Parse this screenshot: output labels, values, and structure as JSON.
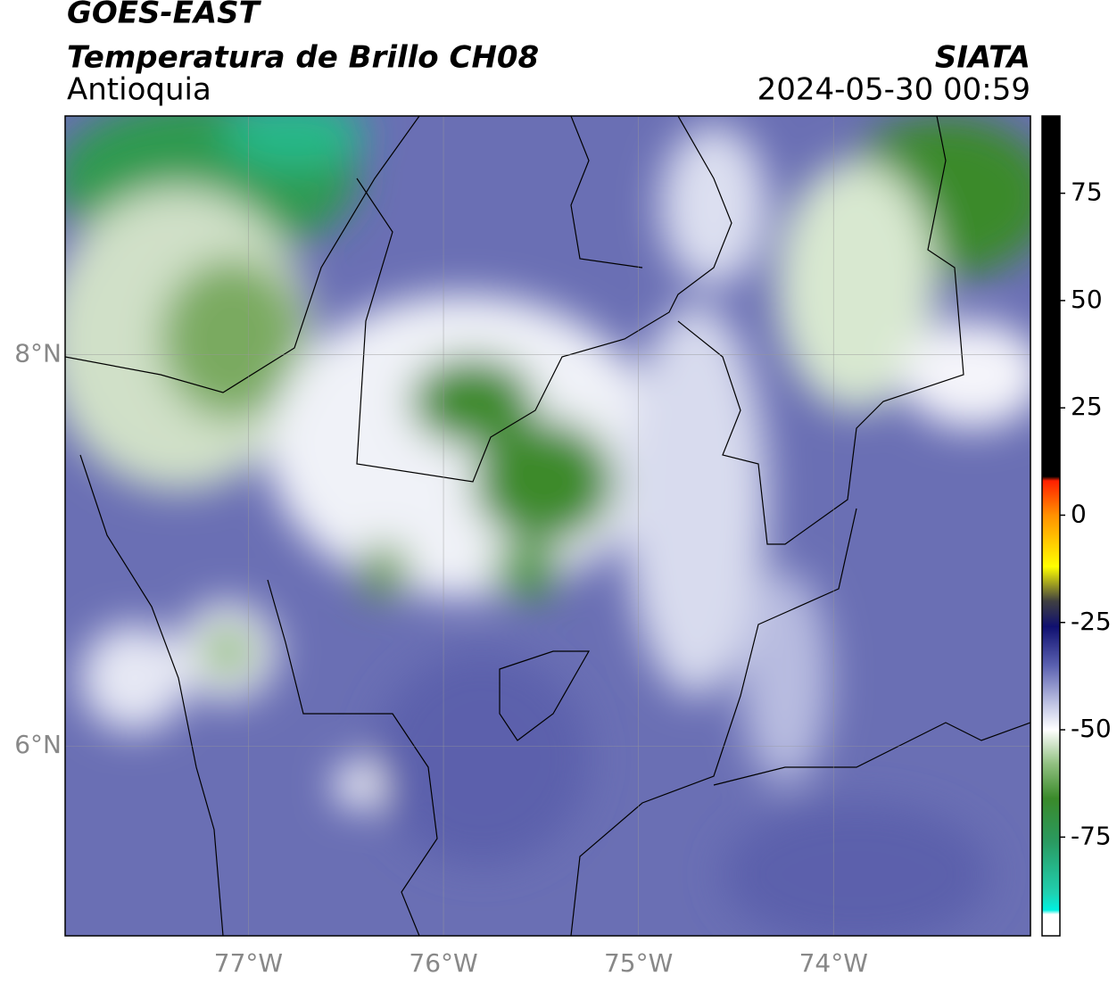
{
  "header": {
    "title": "GOES-EAST",
    "subtitle": "Temperatura de Brillo CH08",
    "region": "Antioquia",
    "source": "SIATA",
    "datetime": "2024-05-30 00:59"
  },
  "map": {
    "lonlim": [
      -77.94,
      -72.99
    ],
    "latlim": [
      5.03,
      9.22
    ],
    "lonticks": [
      {
        "value": -77,
        "label": "77°W"
      },
      {
        "value": -76,
        "label": "76°W"
      },
      {
        "value": -75,
        "label": "75°W"
      },
      {
        "value": -74,
        "label": "74°W"
      }
    ],
    "latticks": [
      {
        "value": 8,
        "label": "8°N"
      },
      {
        "value": 6,
        "label": "6°N"
      }
    ],
    "grid": true
  },
  "colorbar": {
    "lim": [
      -98,
      93
    ],
    "ticks": [
      75,
      50,
      25,
      0,
      -25,
      -50,
      -75
    ],
    "stops": [
      {
        "value": 93,
        "color": "#000000"
      },
      {
        "value": 9,
        "color": "#000000"
      },
      {
        "value": 8,
        "color": "#ff2000"
      },
      {
        "value": 0,
        "color": "#ff9000"
      },
      {
        "value": -12,
        "color": "#ffff00"
      },
      {
        "value": -20,
        "color": "#404040"
      },
      {
        "value": -26,
        "color": "#101070"
      },
      {
        "value": -35,
        "color": "#5a60b0"
      },
      {
        "value": -44,
        "color": "#c0c4e4"
      },
      {
        "value": -50,
        "color": "#ffffff"
      },
      {
        "value": -58,
        "color": "#90c080"
      },
      {
        "value": -66,
        "color": "#3a8a2a"
      },
      {
        "value": -76,
        "color": "#2a9a60"
      },
      {
        "value": -88,
        "color": "#20d0b0"
      },
      {
        "value": -92,
        "color": "#00f0e0"
      },
      {
        "value": -93,
        "color": "#ffffff"
      },
      {
        "value": -98,
        "color": "#ffffff"
      }
    ]
  }
}
